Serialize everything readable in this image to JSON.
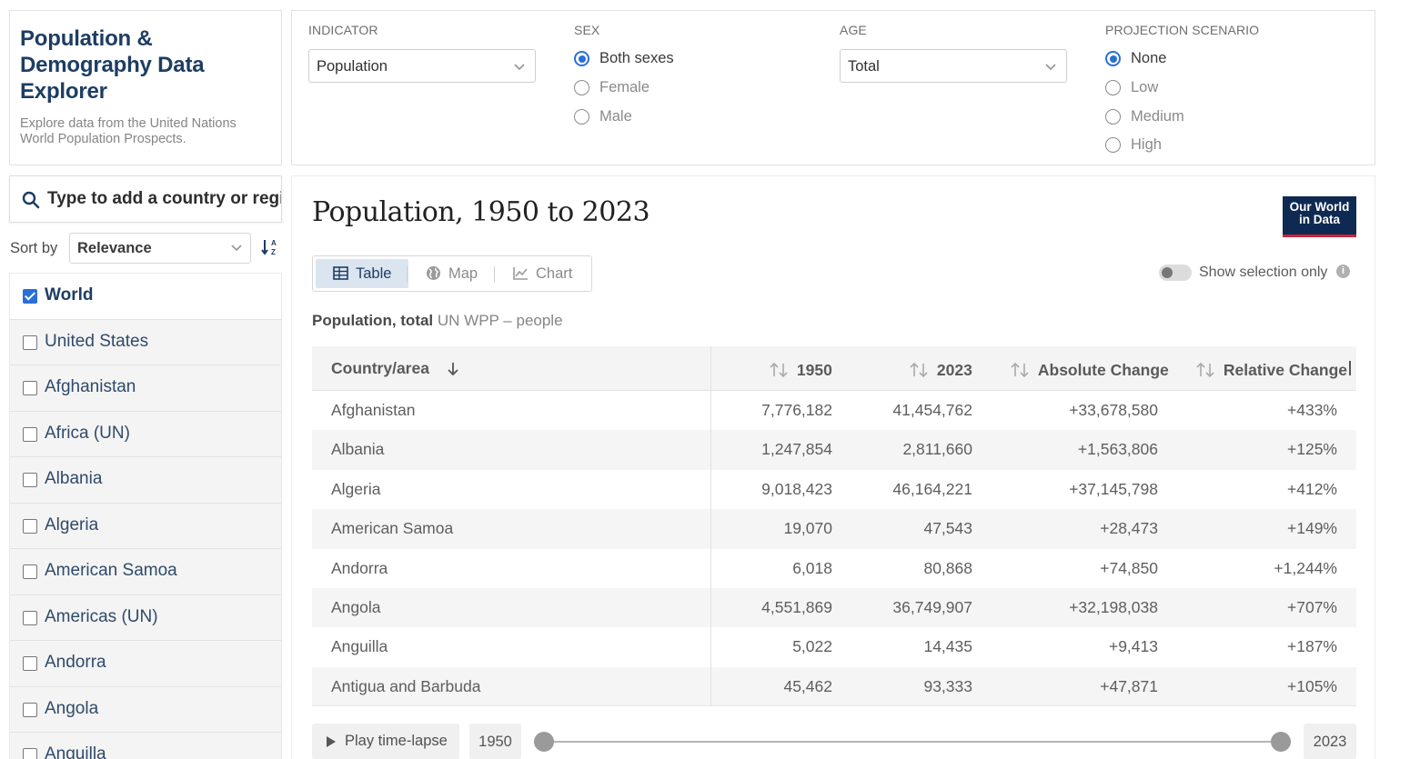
{
  "app": {
    "title": "Population & Demography Data Explorer",
    "description": "Explore data from the United Nations World Population Prospects."
  },
  "search": {
    "placeholder": "Type to add a country or region..."
  },
  "sort": {
    "label": "Sort by",
    "value": "Relevance"
  },
  "entities": [
    {
      "name": "World",
      "checked": true
    },
    {
      "name": "United States",
      "checked": false
    },
    {
      "name": "Afghanistan",
      "checked": false
    },
    {
      "name": "Africa (UN)",
      "checked": false
    },
    {
      "name": "Albania",
      "checked": false
    },
    {
      "name": "Algeria",
      "checked": false
    },
    {
      "name": "American Samoa",
      "checked": false
    },
    {
      "name": "Americas (UN)",
      "checked": false
    },
    {
      "name": "Andorra",
      "checked": false
    },
    {
      "name": "Angola",
      "checked": false
    },
    {
      "name": "Anguilla",
      "checked": false
    }
  ],
  "controls": {
    "indicator": {
      "label": "INDICATOR",
      "value": "Population"
    },
    "sex": {
      "label": "SEX",
      "options": [
        "Both sexes",
        "Female",
        "Male"
      ],
      "selected": "Both sexes"
    },
    "age": {
      "label": "AGE",
      "value": "Total"
    },
    "projection": {
      "label": "PROJECTION SCENARIO",
      "options": [
        "None",
        "Low",
        "Medium",
        "High"
      ],
      "selected": "None"
    }
  },
  "main": {
    "title": "Population, 1950 to 2023",
    "logo_line1": "Our World",
    "logo_line2": "in Data",
    "tabs": [
      {
        "label": "Table",
        "icon": "table-icon",
        "active": true
      },
      {
        "label": "Map",
        "icon": "globe-icon",
        "active": false
      },
      {
        "label": "Chart",
        "icon": "line-chart-icon",
        "active": false
      }
    ],
    "toggle_label": "Show selection only",
    "toggle_on": false,
    "subtitle_bold": "Population, total",
    "subtitle_rest": "UN WPP – people"
  },
  "table": {
    "columns": [
      "Country/area",
      "1950",
      "2023",
      "Absolute Change",
      "Relative Change"
    ],
    "rows": [
      [
        "Afghanistan",
        "7,776,182",
        "41,454,762",
        "+33,678,580",
        "+433%"
      ],
      [
        "Albania",
        "1,247,854",
        "2,811,660",
        "+1,563,806",
        "+125%"
      ],
      [
        "Algeria",
        "9,018,423",
        "46,164,221",
        "+37,145,798",
        "+412%"
      ],
      [
        "American Samoa",
        "19,070",
        "47,543",
        "+28,473",
        "+149%"
      ],
      [
        "Andorra",
        "6,018",
        "80,868",
        "+74,850",
        "+1,244%"
      ],
      [
        "Angola",
        "4,551,869",
        "36,749,907",
        "+32,198,038",
        "+707%"
      ],
      [
        "Anguilla",
        "5,022",
        "14,435",
        "+9,413",
        "+187%"
      ],
      [
        "Antigua and Barbuda",
        "45,462",
        "93,333",
        "+47,871",
        "+105%"
      ]
    ]
  },
  "timeline": {
    "play_label": "Play time-lapse",
    "start_year": "1950",
    "end_year": "2023"
  }
}
